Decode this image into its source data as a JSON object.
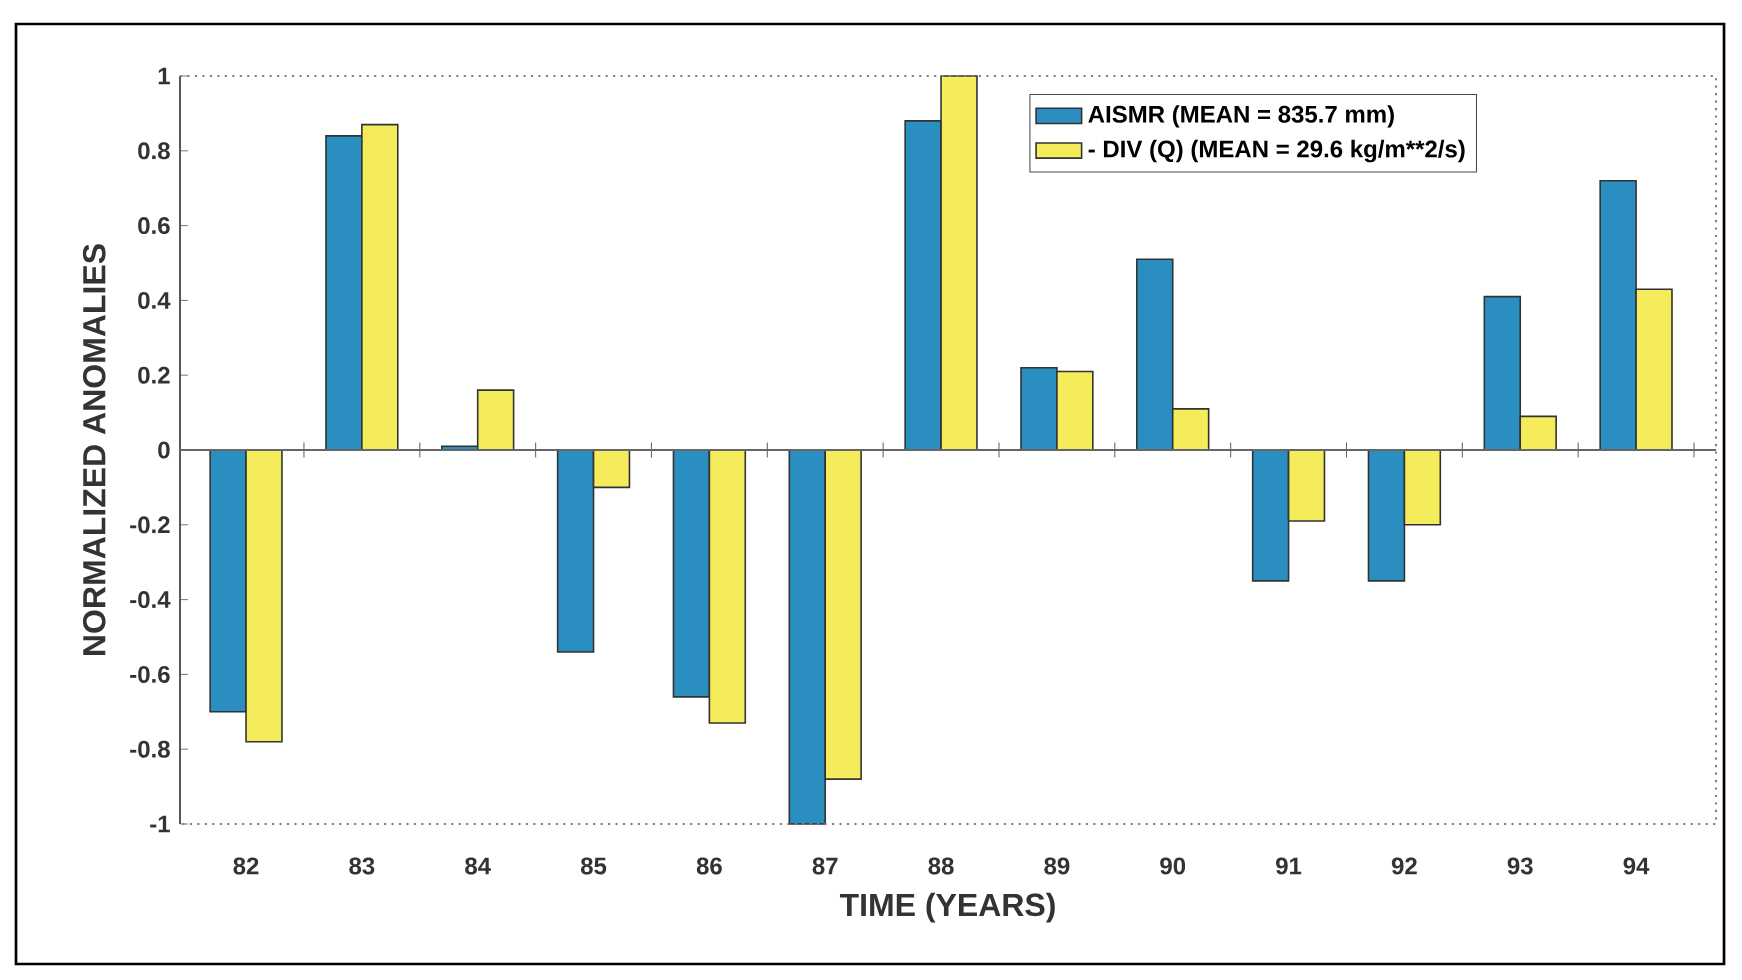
{
  "chart_data": {
    "type": "bar",
    "xlabel": "TIME (YEARS)",
    "ylabel": "NORMALIZED  ANOMALIES",
    "categories": [
      "82",
      "83",
      "84",
      "85",
      "86",
      "87",
      "88",
      "89",
      "90",
      "91",
      "92",
      "93",
      "94"
    ],
    "series": [
      {
        "name": "AISMR  (MEAN = 835.7 mm)",
        "color": "#2a8fc0",
        "values": [
          -0.7,
          0.84,
          0.01,
          -0.54,
          -0.66,
          -1.0,
          0.88,
          0.22,
          0.51,
          -0.35,
          -0.35,
          0.41,
          0.72
        ]
      },
      {
        "name": "- DIV (Q)  (MEAN = 29.6 kg/m**2/s)",
        "color": "#f5ec5c",
        "values": [
          -0.78,
          0.87,
          0.16,
          -0.1,
          -0.73,
          -0.88,
          1.0,
          0.21,
          0.11,
          -0.19,
          -0.2,
          0.09,
          0.43
        ]
      }
    ],
    "ylim": [
      -1,
      1
    ],
    "yticks": [
      -1,
      -0.8,
      -0.6,
      -0.4,
      -0.2,
      0,
      0.2,
      0.4,
      0.6,
      0.8,
      1
    ],
    "legend": "top right"
  }
}
